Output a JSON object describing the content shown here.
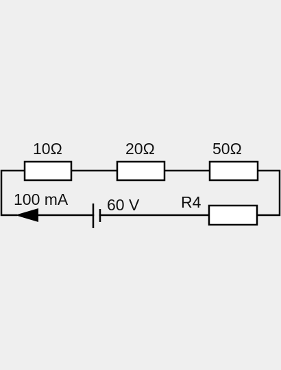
{
  "colors": {
    "background": "#efefef",
    "wire": "#000000",
    "resistor_fill": "#ffffff"
  },
  "resistors": {
    "r1_label": "10Ω",
    "r2_label": "20Ω",
    "r3_label": "50Ω",
    "r4_label": "R4"
  },
  "source": {
    "current_label": "100 mA",
    "voltage_label": "60 V"
  }
}
